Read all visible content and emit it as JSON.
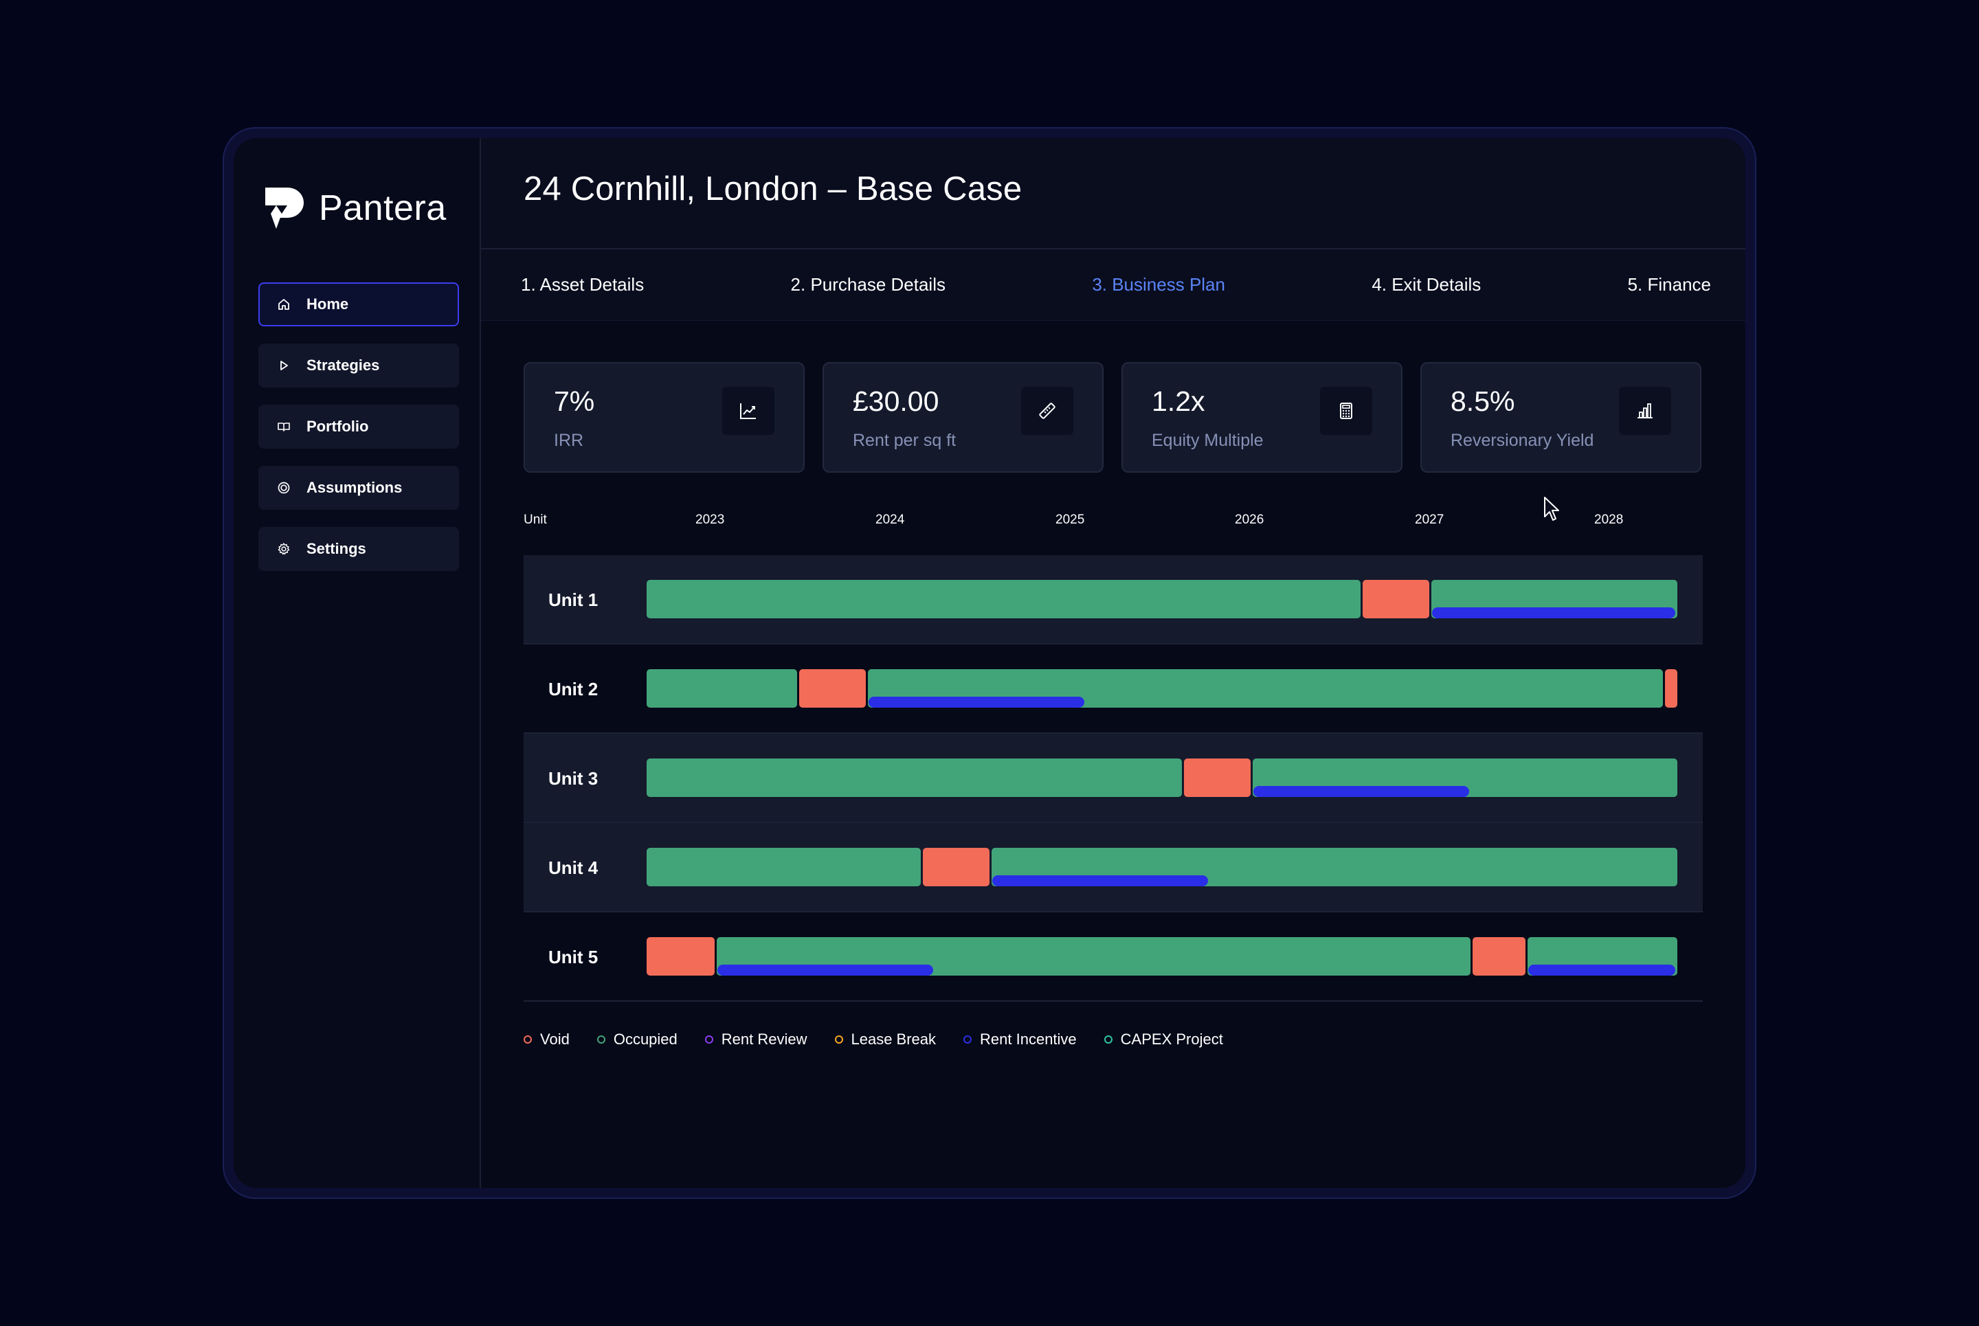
{
  "brand": {
    "name": "Pantera"
  },
  "sidebar": {
    "items": [
      {
        "label": "Home",
        "icon": "home-icon",
        "active": true
      },
      {
        "label": "Strategies",
        "icon": "play-icon",
        "active": false
      },
      {
        "label": "Portfolio",
        "icon": "book-icon",
        "active": false
      },
      {
        "label": "Assumptions",
        "icon": "target-icon",
        "active": false
      },
      {
        "label": "Settings",
        "icon": "gear-icon",
        "active": false
      }
    ]
  },
  "header": {
    "title": "24 Cornhill, London – Base Case"
  },
  "steps": [
    {
      "label": "1. Asset Details",
      "active": false
    },
    {
      "label": "2. Purchase Details",
      "active": false
    },
    {
      "label": "3. Business Plan",
      "active": true
    },
    {
      "label": "4. Exit Details",
      "active": false
    },
    {
      "label": "5. Finance",
      "active": false
    }
  ],
  "kpis": [
    {
      "value": "7%",
      "label": "IRR",
      "icon": "line-chart-icon"
    },
    {
      "value": "£30.00",
      "label": "Rent per sq ft",
      "icon": "ruler-icon"
    },
    {
      "value": "1.2x",
      "label": "Equity Multiple",
      "icon": "calculator-icon"
    },
    {
      "value": "8.5%",
      "label": "Reversionary Yield",
      "icon": "bar-chart-icon"
    }
  ],
  "timeline": {
    "unit_header": "Unit",
    "years": [
      "2023",
      "2024",
      "2025",
      "2026",
      "2027",
      "2028"
    ]
  },
  "chart_data": {
    "type": "gantt",
    "x_range": [
      "2022-05",
      "2028-08"
    ],
    "categories": [
      "Unit 1",
      "Unit 2",
      "Unit 3",
      "Unit 4",
      "Unit 5"
    ],
    "series": [
      {
        "unit": "Unit 1",
        "segments": [
          {
            "status": "Occupied",
            "start": "2022-05",
            "end": "2026-09"
          },
          {
            "status": "Void",
            "start": "2026-09",
            "end": "2027-02"
          },
          {
            "status": "Occupied",
            "start": "2027-02",
            "end": "2028-08"
          }
        ],
        "incentives": [
          {
            "start": "2027-02",
            "end": "2028-08"
          }
        ]
      },
      {
        "unit": "Unit 2",
        "segments": [
          {
            "status": "Occupied",
            "start": "2022-05",
            "end": "2023-04"
          },
          {
            "status": "Void",
            "start": "2023-04",
            "end": "2023-09"
          },
          {
            "status": "Occupied",
            "start": "2023-09",
            "end": "2028-07"
          },
          {
            "status": "Void",
            "start": "2028-07",
            "end": "2028-08"
          }
        ],
        "incentives": [
          {
            "start": "2023-09",
            "end": "2025-01"
          }
        ]
      },
      {
        "unit": "Unit 3",
        "segments": [
          {
            "status": "Occupied",
            "start": "2022-05",
            "end": "2025-08"
          },
          {
            "status": "Void",
            "start": "2025-08",
            "end": "2026-01"
          },
          {
            "status": "Occupied",
            "start": "2026-01",
            "end": "2028-08"
          }
        ],
        "incentives": [
          {
            "start": "2026-01",
            "end": "2027-05"
          }
        ]
      },
      {
        "unit": "Unit 4",
        "segments": [
          {
            "status": "Occupied",
            "start": "2022-05",
            "end": "2024-01"
          },
          {
            "status": "Void",
            "start": "2024-01",
            "end": "2024-06"
          },
          {
            "status": "Occupied",
            "start": "2024-06",
            "end": "2028-08"
          }
        ],
        "incentives": [
          {
            "start": "2024-06",
            "end": "2025-10"
          }
        ]
      },
      {
        "unit": "Unit 5",
        "segments": [
          {
            "status": "Void",
            "start": "2022-05",
            "end": "2022-10"
          },
          {
            "status": "Occupied",
            "start": "2022-10",
            "end": "2027-05"
          },
          {
            "status": "Void",
            "start": "2027-05",
            "end": "2027-09"
          },
          {
            "status": "Occupied",
            "start": "2027-09",
            "end": "2028-08"
          }
        ],
        "incentives": [
          {
            "start": "2022-10",
            "end": "2024-02"
          },
          {
            "start": "2027-09",
            "end": "2028-08"
          }
        ]
      }
    ]
  },
  "legend": [
    {
      "label": "Void",
      "color": "#f36c58"
    },
    {
      "label": "Occupied",
      "color": "#42a57a"
    },
    {
      "label": "Rent Review",
      "color": "#8b3df0"
    },
    {
      "label": "Lease Break",
      "color": "#f5a623"
    },
    {
      "label": "Rent Incentive",
      "color": "#2a2ee6"
    },
    {
      "label": "CAPEX Project",
      "color": "#2ec4a0"
    }
  ],
  "colors": {
    "accent": "#5b84f7",
    "void": "#f36c58",
    "occupied": "#42a57a",
    "incentive": "#2a2ee6"
  }
}
